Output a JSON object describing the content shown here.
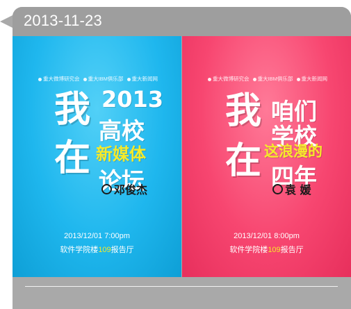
{
  "header": {
    "date": "2013-11-23"
  },
  "posters": [
    {
      "orgs": [
        "重大微博研究会",
        "重大IBM俱乐部",
        "重大新闻网"
      ],
      "big_chars": [
        "我",
        "在"
      ],
      "title_lines": [
        "2013",
        "高校",
        "新媒体",
        "论坛"
      ],
      "speaker": "邓俊杰",
      "time": "2013/12/01   7:00pm",
      "place_before": "软件学院楼",
      "place_room": "109",
      "place_after": "报告厅",
      "colors": {
        "background": "#1fb7ee",
        "accent": "#f5ea2a"
      }
    },
    {
      "orgs": [
        "重大微博研究会",
        "重大IBM俱乐部",
        "重大新闻网"
      ],
      "big_chars": [
        "我",
        "在"
      ],
      "title_lines": [
        "咱们",
        "学校",
        "这浪漫的",
        "四年"
      ],
      "speaker": "袁   媛",
      "time": "2013/12/01   8:00pm",
      "place_before": "软件学院楼",
      "place_room": "109",
      "place_after": "报告厅",
      "colors": {
        "background": "#f74670",
        "accent": "#f5ea2a"
      }
    }
  ],
  "icons": {
    "speaker_marker": "circle-ring-icon",
    "org_bullet": "dot-icon",
    "pointer": "left-notch-icon"
  }
}
